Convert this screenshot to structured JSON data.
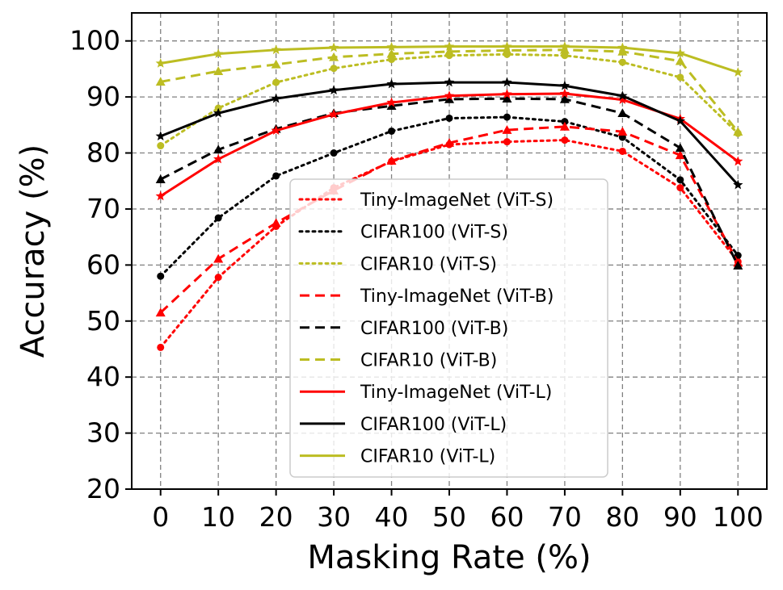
{
  "chart_data": {
    "type": "line",
    "title": "",
    "xlabel": "Masking Rate (%)",
    "ylabel": "Accuracy (%)",
    "xlim": [
      -5,
      105
    ],
    "ylim": [
      20,
      105
    ],
    "x": [
      0,
      10,
      20,
      30,
      40,
      50,
      60,
      70,
      80,
      90,
      100
    ],
    "x_ticks": [
      "0",
      "10",
      "20",
      "30",
      "40",
      "50",
      "60",
      "70",
      "80",
      "90",
      "100"
    ],
    "y_ticks": [
      "20",
      "30",
      "40",
      "50",
      "60",
      "70",
      "80",
      "90",
      "100"
    ],
    "grid": true,
    "legend_position": "lower-center",
    "series": [
      {
        "name": "Tiny-ImageNet (ViT-S)",
        "color": "#ff0000",
        "linestyle": "dotted",
        "marker": "circle",
        "values": [
          45.3,
          57.8,
          66.9,
          73.8,
          78.5,
          81.5,
          82.0,
          82.3,
          80.3,
          73.8,
          60.6
        ]
      },
      {
        "name": "CIFAR100 (ViT-S)",
        "color": "#000000",
        "linestyle": "dotted",
        "marker": "circle",
        "values": [
          58.0,
          68.4,
          75.9,
          80.0,
          83.9,
          86.2,
          86.4,
          85.6,
          82.8,
          75.2,
          61.7
        ]
      },
      {
        "name": "CIFAR10 (ViT-S)",
        "color": "#bcbd22",
        "linestyle": "dotted",
        "marker": "circle",
        "values": [
          81.3,
          88.0,
          92.6,
          95.1,
          96.7,
          97.4,
          97.6,
          97.4,
          96.2,
          93.5,
          83.5
        ]
      },
      {
        "name": "Tiny-ImageNet (ViT-B)",
        "color": "#ff0000",
        "linestyle": "dashed",
        "marker": "triangle",
        "values": [
          51.5,
          61.1,
          67.5,
          73.3,
          78.6,
          81.8,
          84.1,
          84.7,
          83.8,
          79.6,
          60.4
        ]
      },
      {
        "name": "CIFAR100 (ViT-B)",
        "color": "#000000",
        "linestyle": "dashed",
        "marker": "triangle",
        "values": [
          75.3,
          80.6,
          84.3,
          87.1,
          88.4,
          89.6,
          89.7,
          89.6,
          87.1,
          80.9,
          59.9
        ]
      },
      {
        "name": "CIFAR10 (ViT-B)",
        "color": "#bcbd22",
        "linestyle": "dashed",
        "marker": "triangle",
        "values": [
          92.7,
          94.6,
          95.8,
          97.1,
          97.7,
          98.1,
          98.3,
          98.4,
          98.1,
          96.4,
          83.8
        ]
      },
      {
        "name": "Tiny-ImageNet (ViT-L)",
        "color": "#ff0000",
        "linestyle": "solid",
        "marker": "star",
        "values": [
          72.3,
          78.9,
          84.0,
          86.9,
          89.0,
          90.2,
          90.5,
          90.6,
          89.5,
          86.1,
          78.5
        ]
      },
      {
        "name": "CIFAR100 (ViT-L)",
        "color": "#000000",
        "linestyle": "solid",
        "marker": "star",
        "values": [
          83.0,
          87.1,
          89.7,
          91.2,
          92.3,
          92.6,
          92.6,
          92.0,
          90.2,
          85.7,
          74.3
        ]
      },
      {
        "name": "CIFAR10 (ViT-L)",
        "color": "#bcbd22",
        "linestyle": "solid",
        "marker": "star",
        "values": [
          96.0,
          97.7,
          98.4,
          98.8,
          98.9,
          99.0,
          99.0,
          99.0,
          98.8,
          97.8,
          94.4
        ]
      }
    ]
  }
}
